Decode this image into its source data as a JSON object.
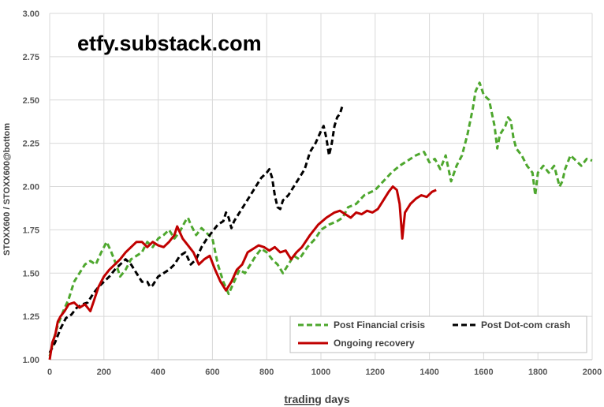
{
  "watermark": "etfy.substack.com",
  "chart_data": {
    "type": "line",
    "xlabel_underlined": "trading",
    "xlabel_rest": " days",
    "ylabel": "STOXX600 / STOXX600@bottom",
    "xlim": [
      0,
      2000
    ],
    "ylim": [
      1.0,
      3.0
    ],
    "x_ticks": [
      "0",
      "200",
      "400",
      "600",
      "800",
      "1000",
      "1200",
      "1400",
      "1600",
      "1800",
      "2000"
    ],
    "y_ticks": [
      "1.00",
      "1.25",
      "1.50",
      "1.75",
      "2.00",
      "2.25",
      "2.50",
      "2.75",
      "3.00"
    ],
    "grid": "vertical-and-horizontal",
    "legend_position": "bottom-right",
    "series": [
      {
        "name": "Post Financial crisis",
        "color": "#4ea72e",
        "style": "dashed",
        "points": [
          [
            0,
            1.02
          ],
          [
            15,
            1.12
          ],
          [
            30,
            1.2
          ],
          [
            50,
            1.28
          ],
          [
            70,
            1.35
          ],
          [
            90,
            1.45
          ],
          [
            110,
            1.5
          ],
          [
            130,
            1.55
          ],
          [
            150,
            1.57
          ],
          [
            170,
            1.55
          ],
          [
            190,
            1.62
          ],
          [
            210,
            1.68
          ],
          [
            225,
            1.63
          ],
          [
            245,
            1.55
          ],
          [
            260,
            1.48
          ],
          [
            280,
            1.52
          ],
          [
            300,
            1.58
          ],
          [
            320,
            1.6
          ],
          [
            340,
            1.62
          ],
          [
            360,
            1.68
          ],
          [
            380,
            1.65
          ],
          [
            400,
            1.7
          ],
          [
            420,
            1.72
          ],
          [
            440,
            1.75
          ],
          [
            460,
            1.7
          ],
          [
            480,
            1.74
          ],
          [
            500,
            1.8
          ],
          [
            510,
            1.82
          ],
          [
            520,
            1.78
          ],
          [
            540,
            1.72
          ],
          [
            560,
            1.76
          ],
          [
            580,
            1.73
          ],
          [
            600,
            1.7
          ],
          [
            620,
            1.55
          ],
          [
            640,
            1.45
          ],
          [
            660,
            1.38
          ],
          [
            680,
            1.45
          ],
          [
            700,
            1.52
          ],
          [
            720,
            1.5
          ],
          [
            740,
            1.55
          ],
          [
            760,
            1.6
          ],
          [
            780,
            1.64
          ],
          [
            800,
            1.62
          ],
          [
            820,
            1.58
          ],
          [
            840,
            1.55
          ],
          [
            860,
            1.5
          ],
          [
            880,
            1.55
          ],
          [
            900,
            1.6
          ],
          [
            920,
            1.58
          ],
          [
            950,
            1.65
          ],
          [
            980,
            1.7
          ],
          [
            1000,
            1.75
          ],
          [
            1030,
            1.78
          ],
          [
            1060,
            1.8
          ],
          [
            1080,
            1.82
          ],
          [
            1100,
            1.88
          ],
          [
            1130,
            1.9
          ],
          [
            1160,
            1.95
          ],
          [
            1200,
            1.98
          ],
          [
            1230,
            2.03
          ],
          [
            1260,
            2.08
          ],
          [
            1290,
            2.12
          ],
          [
            1320,
            2.15
          ],
          [
            1350,
            2.18
          ],
          [
            1380,
            2.2
          ],
          [
            1400,
            2.14
          ],
          [
            1420,
            2.16
          ],
          [
            1440,
            2.1
          ],
          [
            1460,
            2.18
          ],
          [
            1480,
            2.03
          ],
          [
            1500,
            2.12
          ],
          [
            1520,
            2.18
          ],
          [
            1540,
            2.3
          ],
          [
            1560,
            2.45
          ],
          [
            1570,
            2.55
          ],
          [
            1585,
            2.6
          ],
          [
            1600,
            2.53
          ],
          [
            1620,
            2.5
          ],
          [
            1640,
            2.35
          ],
          [
            1650,
            2.22
          ],
          [
            1660,
            2.3
          ],
          [
            1680,
            2.35
          ],
          [
            1690,
            2.4
          ],
          [
            1700,
            2.38
          ],
          [
            1710,
            2.28
          ],
          [
            1720,
            2.22
          ],
          [
            1740,
            2.18
          ],
          [
            1760,
            2.12
          ],
          [
            1780,
            2.08
          ],
          [
            1790,
            1.95
          ],
          [
            1800,
            2.08
          ],
          [
            1820,
            2.12
          ],
          [
            1840,
            2.08
          ],
          [
            1860,
            2.12
          ],
          [
            1880,
            2.0
          ],
          [
            1890,
            2.03
          ],
          [
            1900,
            2.1
          ],
          [
            1920,
            2.18
          ],
          [
            1940,
            2.15
          ],
          [
            1960,
            2.12
          ],
          [
            1980,
            2.16
          ],
          [
            2000,
            2.15
          ]
        ]
      },
      {
        "name": "Post Dot-com crash",
        "color": "#000000",
        "style": "dashed",
        "points": [
          [
            0,
            1.04
          ],
          [
            20,
            1.1
          ],
          [
            40,
            1.18
          ],
          [
            60,
            1.24
          ],
          [
            80,
            1.26
          ],
          [
            100,
            1.3
          ],
          [
            120,
            1.32
          ],
          [
            140,
            1.33
          ],
          [
            160,
            1.38
          ],
          [
            180,
            1.42
          ],
          [
            200,
            1.45
          ],
          [
            220,
            1.48
          ],
          [
            240,
            1.52
          ],
          [
            260,
            1.55
          ],
          [
            280,
            1.58
          ],
          [
            300,
            1.55
          ],
          [
            320,
            1.5
          ],
          [
            340,
            1.45
          ],
          [
            360,
            1.45
          ],
          [
            370,
            1.42
          ],
          [
            380,
            1.43
          ],
          [
            400,
            1.48
          ],
          [
            420,
            1.5
          ],
          [
            440,
            1.52
          ],
          [
            460,
            1.55
          ],
          [
            480,
            1.6
          ],
          [
            500,
            1.62
          ],
          [
            520,
            1.55
          ],
          [
            540,
            1.58
          ],
          [
            560,
            1.65
          ],
          [
            580,
            1.7
          ],
          [
            600,
            1.74
          ],
          [
            620,
            1.78
          ],
          [
            640,
            1.8
          ],
          [
            650,
            1.85
          ],
          [
            660,
            1.82
          ],
          [
            670,
            1.76
          ],
          [
            680,
            1.8
          ],
          [
            700,
            1.85
          ],
          [
            720,
            1.9
          ],
          [
            740,
            1.95
          ],
          [
            760,
            2.0
          ],
          [
            780,
            2.05
          ],
          [
            800,
            2.08
          ],
          [
            810,
            2.1
          ],
          [
            820,
            2.05
          ],
          [
            830,
            1.95
          ],
          [
            840,
            1.88
          ],
          [
            850,
            1.87
          ],
          [
            860,
            1.92
          ],
          [
            880,
            1.95
          ],
          [
            900,
            2.0
          ],
          [
            920,
            2.05
          ],
          [
            940,
            2.1
          ],
          [
            960,
            2.2
          ],
          [
            980,
            2.25
          ],
          [
            1000,
            2.32
          ],
          [
            1010,
            2.35
          ],
          [
            1020,
            2.28
          ],
          [
            1030,
            2.18
          ],
          [
            1040,
            2.25
          ],
          [
            1050,
            2.35
          ],
          [
            1060,
            2.4
          ],
          [
            1070,
            2.42
          ],
          [
            1078,
            2.46
          ]
        ]
      },
      {
        "name": "Ongoing recovery",
        "color": "#c00000",
        "style": "solid",
        "points": [
          [
            0,
            1.0
          ],
          [
            10,
            1.1
          ],
          [
            20,
            1.14
          ],
          [
            30,
            1.22
          ],
          [
            40,
            1.25
          ],
          [
            55,
            1.28
          ],
          [
            70,
            1.32
          ],
          [
            90,
            1.33
          ],
          [
            110,
            1.3
          ],
          [
            130,
            1.32
          ],
          [
            150,
            1.28
          ],
          [
            165,
            1.35
          ],
          [
            180,
            1.42
          ],
          [
            200,
            1.48
          ],
          [
            220,
            1.52
          ],
          [
            240,
            1.55
          ],
          [
            260,
            1.58
          ],
          [
            280,
            1.62
          ],
          [
            300,
            1.65
          ],
          [
            320,
            1.68
          ],
          [
            340,
            1.68
          ],
          [
            360,
            1.65
          ],
          [
            380,
            1.68
          ],
          [
            400,
            1.66
          ],
          [
            420,
            1.65
          ],
          [
            440,
            1.68
          ],
          [
            460,
            1.72
          ],
          [
            470,
            1.77
          ],
          [
            490,
            1.7
          ],
          [
            510,
            1.66
          ],
          [
            530,
            1.62
          ],
          [
            550,
            1.55
          ],
          [
            570,
            1.58
          ],
          [
            590,
            1.6
          ],
          [
            610,
            1.52
          ],
          [
            630,
            1.45
          ],
          [
            650,
            1.4
          ],
          [
            670,
            1.45
          ],
          [
            690,
            1.52
          ],
          [
            710,
            1.55
          ],
          [
            730,
            1.62
          ],
          [
            750,
            1.64
          ],
          [
            770,
            1.66
          ],
          [
            790,
            1.65
          ],
          [
            810,
            1.63
          ],
          [
            830,
            1.65
          ],
          [
            850,
            1.62
          ],
          [
            870,
            1.63
          ],
          [
            890,
            1.58
          ],
          [
            910,
            1.62
          ],
          [
            930,
            1.65
          ],
          [
            960,
            1.72
          ],
          [
            990,
            1.78
          ],
          [
            1020,
            1.82
          ],
          [
            1050,
            1.85
          ],
          [
            1070,
            1.86
          ],
          [
            1090,
            1.84
          ],
          [
            1110,
            1.82
          ],
          [
            1130,
            1.85
          ],
          [
            1150,
            1.84
          ],
          [
            1170,
            1.86
          ],
          [
            1190,
            1.85
          ],
          [
            1210,
            1.87
          ],
          [
            1230,
            1.92
          ],
          [
            1250,
            1.97
          ],
          [
            1265,
            2.0
          ],
          [
            1280,
            1.98
          ],
          [
            1290,
            1.9
          ],
          [
            1300,
            1.7
          ],
          [
            1310,
            1.85
          ],
          [
            1330,
            1.9
          ],
          [
            1350,
            1.93
          ],
          [
            1370,
            1.95
          ],
          [
            1390,
            1.94
          ],
          [
            1410,
            1.97
          ],
          [
            1425,
            1.98
          ]
        ]
      }
    ]
  }
}
